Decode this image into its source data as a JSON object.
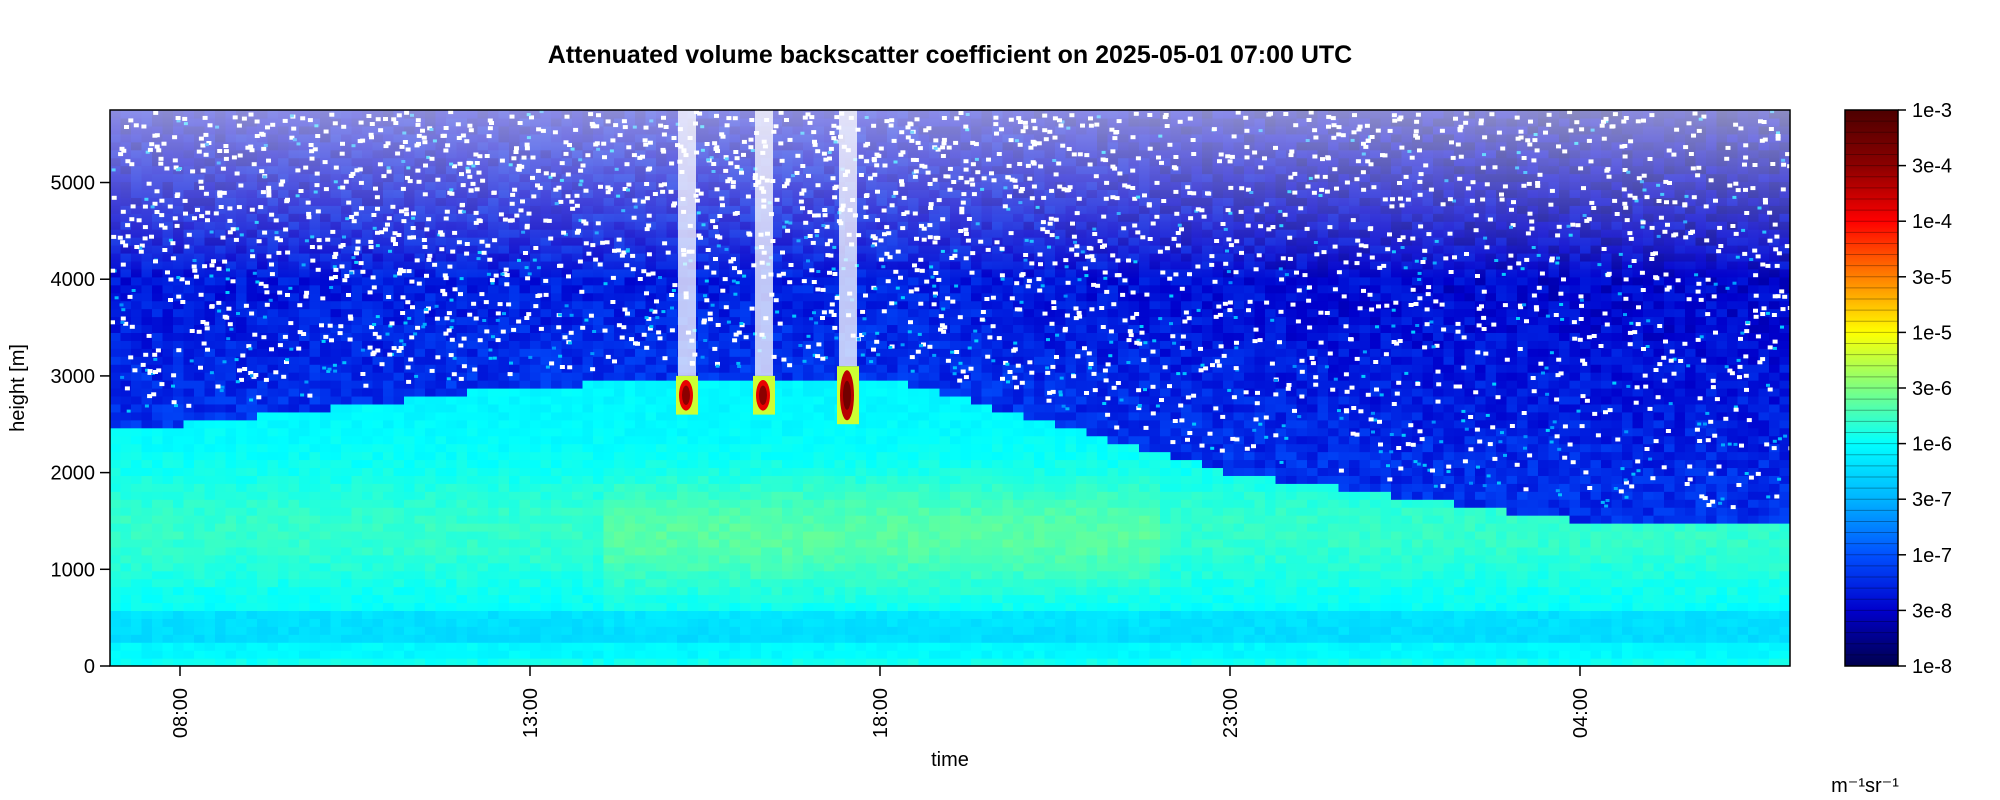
{
  "chart_data": {
    "type": "heatmap",
    "title": "Attenuated volume backscatter coefficient on 2025-05-01 07:00 UTC",
    "xlabel": "time",
    "ylabel": "height [m]",
    "x_ticks": [
      "08:00",
      "13:00",
      "18:00",
      "23:00",
      "04:00"
    ],
    "y_ticks": [
      0,
      1000,
      2000,
      3000,
      4000,
      5000
    ],
    "y_ticks_text": [
      "0",
      "1000",
      "2000",
      "3000",
      "4000",
      "5000"
    ],
    "xlim_hours": [
      7.0,
      31.0
    ],
    "ylim": [
      0,
      5750
    ],
    "colorbar": {
      "scale": "log",
      "range": [
        1e-08,
        0.001
      ],
      "tick_labels": [
        "1e-3",
        "3e-4",
        "1e-4",
        "3e-5",
        "1e-5",
        "3e-6",
        "1e-6",
        "3e-7",
        "1e-7",
        "3e-8",
        "1e-8"
      ],
      "unit": "m⁻¹sr⁻¹",
      "colors": [
        "#00004d",
        "#0000cc",
        "#0050ff",
        "#00b4ff",
        "#00ffff",
        "#7fff7f",
        "#ffff00",
        "#ff8000",
        "#ff0000",
        "#8b0000",
        "#4d0000"
      ]
    },
    "features": {
      "aerosol_layer_top_m": [
        {
          "time": "08:00",
          "height": 2500
        },
        {
          "time": "13:00",
          "height": 2900
        },
        {
          "time": "18:00",
          "height": 3000
        },
        {
          "time": "23:00",
          "height": 2000
        },
        {
          "time": "04:00",
          "height": 1500
        }
      ],
      "cloud_patches": [
        {
          "time_hour": 15.2,
          "height_base": 2600,
          "height_top": 3000,
          "max_log10": -3.5
        },
        {
          "time_hour": 16.3,
          "height_base": 2600,
          "height_top": 3000,
          "max_log10": -3.5
        },
        {
          "time_hour": 17.5,
          "height_base": 2500,
          "height_top": 3100,
          "max_log10": -3.3
        }
      ]
    }
  }
}
